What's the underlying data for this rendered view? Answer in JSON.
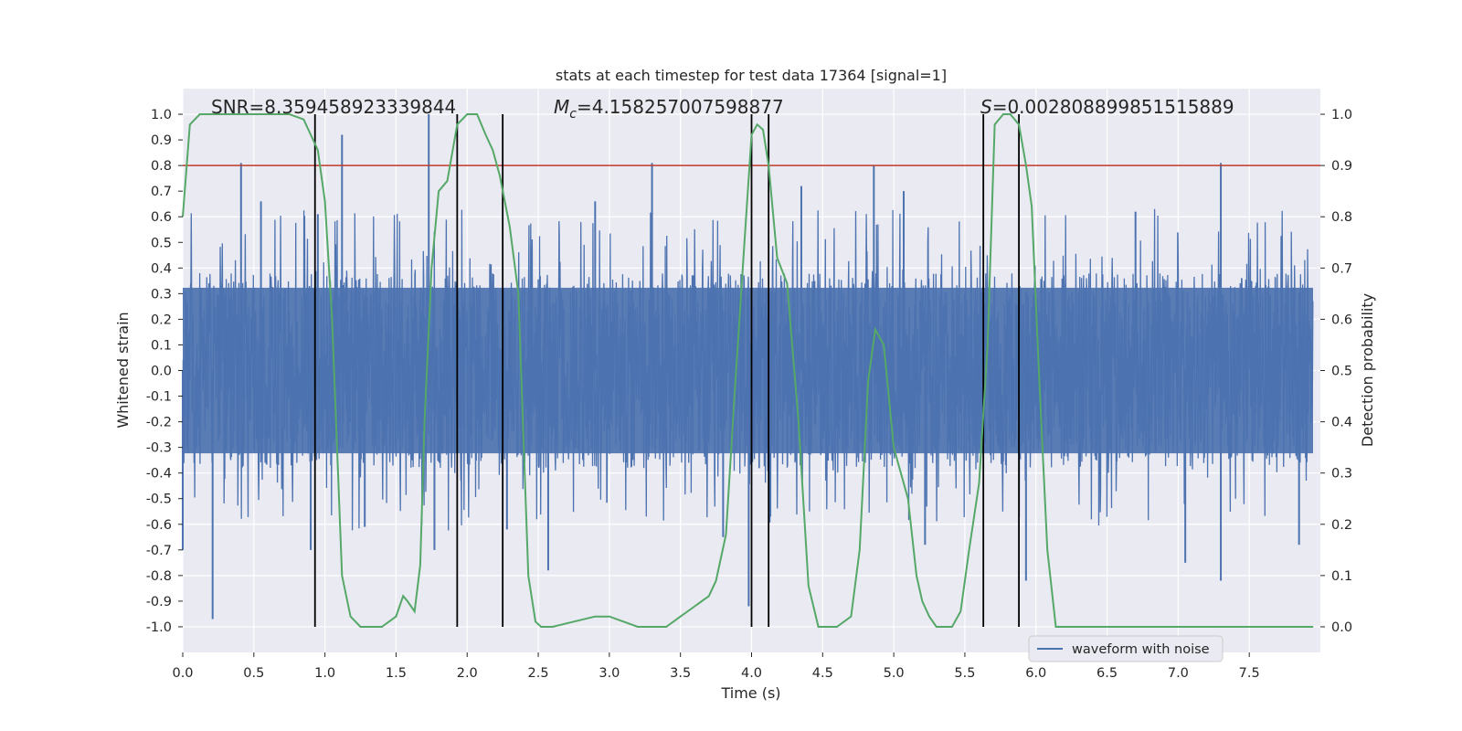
{
  "chart_data": {
    "type": "line",
    "title": "stats at each timestep for test data 17364 [signal=1]",
    "xlabel": "Time (s)",
    "ylabel_left": "Whitened strain",
    "ylabel_right": "Detection probability",
    "xlim": [
      0,
      8
    ],
    "ylim_left": [
      -1.1,
      1.1
    ],
    "ylim_right": [
      -0.05,
      1.05
    ],
    "x_ticks": [
      0.0,
      0.5,
      1.0,
      1.5,
      2.0,
      2.5,
      3.0,
      3.5,
      4.0,
      4.5,
      5.0,
      5.5,
      6.0,
      6.5,
      7.0,
      7.5
    ],
    "x_tick_labels": [
      "0.0",
      "0.5",
      "1.0",
      "1.5",
      "2.0",
      "2.5",
      "3.0",
      "3.5",
      "4.0",
      "4.5",
      "5.0",
      "5.5",
      "6.0",
      "6.5",
      "7.0",
      "7.5"
    ],
    "left_ticks": [
      -1.0,
      -0.9,
      -0.8,
      -0.7,
      -0.6,
      -0.5,
      -0.4,
      -0.3,
      -0.2,
      -0.1,
      0.0,
      0.1,
      0.2,
      0.3,
      0.4,
      0.5,
      0.6,
      0.7,
      0.8,
      0.9,
      1.0
    ],
    "left_tick_labels": [
      "-1.0",
      "-0.9",
      "-0.8",
      "-0.7",
      "-0.6",
      "-0.5",
      "-0.4",
      "-0.3",
      "-0.2",
      "-0.1",
      "0.0",
      "0.1",
      "0.2",
      "0.3",
      "0.4",
      "0.5",
      "0.6",
      "0.7",
      "0.8",
      "0.9",
      "1.0"
    ],
    "right_ticks": [
      0.0,
      0.1,
      0.2,
      0.3,
      0.4,
      0.5,
      0.6,
      0.7,
      0.8,
      0.9,
      1.0
    ],
    "right_tick_labels": [
      "0.0",
      "0.1",
      "0.2",
      "0.3",
      "0.4",
      "0.5",
      "0.6",
      "0.7",
      "0.8",
      "0.9",
      "1.0"
    ],
    "grid": true,
    "legend": {
      "placement": "lower-right",
      "entries": [
        "waveform with noise"
      ]
    },
    "annotations": {
      "snr": "SNR=8.359458923339844",
      "mc_symbol": "M",
      "mc_sub": "c",
      "mc_value": "=4.158257007598877",
      "s_symbol": "S",
      "s_value": "=0.002808899851515889"
    },
    "threshold": {
      "axis": "left",
      "y": 0.8,
      "color": "#c0392b"
    },
    "event_markers_x": [
      0.93,
      1.93,
      2.25,
      4.0,
      4.12,
      5.63,
      5.88
    ],
    "waveform": {
      "name": "waveform with noise",
      "color": "#4c72b0",
      "core_envelope": 0.38,
      "core_envelope_neg": -0.38,
      "spikes": [
        [
          0.0,
          -0.7
        ],
        [
          0.02,
          0.28
        ],
        [
          0.21,
          -0.97
        ],
        [
          0.41,
          0.81
        ],
        [
          0.55,
          0.66
        ],
        [
          0.9,
          -0.7
        ],
        [
          0.95,
          0.61
        ],
        [
          1.12,
          0.92
        ],
        [
          1.28,
          -0.61
        ],
        [
          1.73,
          1.0
        ],
        [
          1.77,
          -0.7
        ],
        [
          2.28,
          -0.62
        ],
        [
          2.57,
          -0.78
        ],
        [
          2.9,
          0.66
        ],
        [
          3.3,
          0.81
        ],
        [
          3.8,
          -0.65
        ],
        [
          3.98,
          -0.92
        ],
        [
          4.35,
          0.72
        ],
        [
          4.86,
          0.8
        ],
        [
          5.07,
          0.7
        ],
        [
          5.22,
          -0.68
        ],
        [
          5.93,
          -0.82
        ],
        [
          6.7,
          0.62
        ],
        [
          7.05,
          -0.75
        ],
        [
          7.3,
          0.81
        ],
        [
          7.3,
          -0.82
        ],
        [
          7.85,
          -0.68
        ]
      ]
    },
    "series": [
      {
        "name": "detection probability",
        "color": "#55a868",
        "axis": "right",
        "x": [
          0.0,
          0.05,
          0.12,
          0.2,
          0.4,
          0.6,
          0.75,
          0.85,
          0.9,
          0.95,
          1.0,
          1.05,
          1.12,
          1.18,
          1.25,
          1.32,
          1.4,
          1.45,
          1.5,
          1.55,
          1.58,
          1.63,
          1.67,
          1.7,
          1.75,
          1.8,
          1.86,
          1.93,
          2.0,
          2.07,
          2.13,
          2.18,
          2.23,
          2.3,
          2.36,
          2.43,
          2.48,
          2.52,
          2.6,
          2.75,
          2.9,
          3.0,
          3.1,
          3.2,
          3.3,
          3.4,
          3.5,
          3.6,
          3.7,
          3.75,
          3.82,
          3.88,
          3.95,
          4.0,
          4.04,
          4.08,
          4.12,
          4.18,
          4.25,
          4.33,
          4.4,
          4.47,
          4.53,
          4.6,
          4.7,
          4.76,
          4.82,
          4.87,
          4.93,
          5.0,
          5.05,
          5.1,
          5.16,
          5.2,
          5.25,
          5.3,
          5.36,
          5.41,
          5.47,
          5.53,
          5.6,
          5.66,
          5.71,
          5.77,
          5.82,
          5.88,
          5.93,
          5.97,
          6.02,
          6.08,
          6.14,
          6.2,
          6.5,
          7.0,
          7.2,
          7.5,
          7.7,
          7.95
        ],
        "y": [
          0.8,
          0.98,
          1.0,
          1.0,
          1.0,
          1.0,
          1.0,
          0.99,
          0.96,
          0.93,
          0.83,
          0.6,
          0.1,
          0.02,
          0.0,
          0.0,
          0.0,
          0.01,
          0.02,
          0.06,
          0.05,
          0.03,
          0.12,
          0.4,
          0.7,
          0.85,
          0.87,
          0.98,
          1.0,
          1.0,
          0.96,
          0.93,
          0.88,
          0.78,
          0.65,
          0.1,
          0.01,
          0.0,
          0.0,
          0.01,
          0.02,
          0.02,
          0.01,
          0.0,
          0.0,
          0.0,
          0.02,
          0.04,
          0.06,
          0.09,
          0.18,
          0.45,
          0.75,
          0.96,
          0.98,
          0.97,
          0.9,
          0.72,
          0.67,
          0.4,
          0.08,
          0.0,
          0.0,
          0.0,
          0.02,
          0.15,
          0.48,
          0.58,
          0.55,
          0.35,
          0.3,
          0.25,
          0.1,
          0.05,
          0.02,
          0.0,
          0.0,
          0.0,
          0.03,
          0.15,
          0.28,
          0.55,
          0.98,
          1.0,
          1.0,
          0.98,
          0.9,
          0.82,
          0.5,
          0.15,
          0.0,
          0.0,
          0.0,
          0.0,
          0.0,
          0.0,
          0.0,
          0.0
        ]
      }
    ]
  }
}
